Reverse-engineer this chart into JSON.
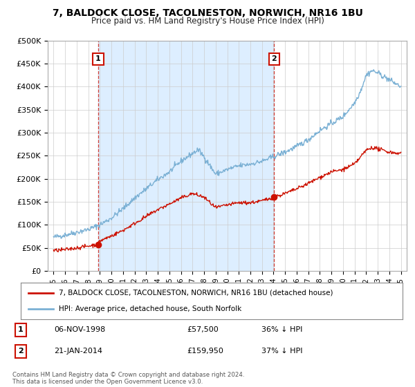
{
  "title": "7, BALDOCK CLOSE, TACOLNESTON, NORWICH, NR16 1BU",
  "subtitle": "Price paid vs. HM Land Registry's House Price Index (HPI)",
  "ylabel_ticks": [
    "£0",
    "£50K",
    "£100K",
    "£150K",
    "£200K",
    "£250K",
    "£300K",
    "£350K",
    "£400K",
    "£450K",
    "£500K"
  ],
  "ytick_values": [
    0,
    50000,
    100000,
    150000,
    200000,
    250000,
    300000,
    350000,
    400000,
    450000,
    500000
  ],
  "xlim": [
    1994.5,
    2025.5
  ],
  "ylim": [
    0,
    500000
  ],
  "xtick_years": [
    1995,
    1996,
    1997,
    1998,
    1999,
    2000,
    2001,
    2002,
    2003,
    2004,
    2005,
    2006,
    2007,
    2008,
    2009,
    2010,
    2011,
    2012,
    2013,
    2014,
    2015,
    2016,
    2017,
    2018,
    2019,
    2020,
    2021,
    2022,
    2023,
    2024,
    2025
  ],
  "hpi_color": "#7ab0d4",
  "price_color": "#cc1100",
  "shade_color": "#ddeeff",
  "sale1_x": 1998.85,
  "sale1_y": 57500,
  "sale1_label": "1",
  "sale1_date": "06-NOV-1998",
  "sale1_price": "£57,500",
  "sale1_hpi": "36% ↓ HPI",
  "sale2_x": 2014.05,
  "sale2_y": 159950,
  "sale2_label": "2",
  "sale2_date": "21-JAN-2014",
  "sale2_price": "£159,950",
  "sale2_hpi": "37% ↓ HPI",
  "legend_line1": "7, BALDOCK CLOSE, TACOLNESTON, NORWICH, NR16 1BU (detached house)",
  "legend_line2": "HPI: Average price, detached house, South Norfolk",
  "footnote": "Contains HM Land Registry data © Crown copyright and database right 2024.\nThis data is licensed under the Open Government Licence v3.0.",
  "background_color": "#ffffff",
  "grid_color": "#cccccc"
}
